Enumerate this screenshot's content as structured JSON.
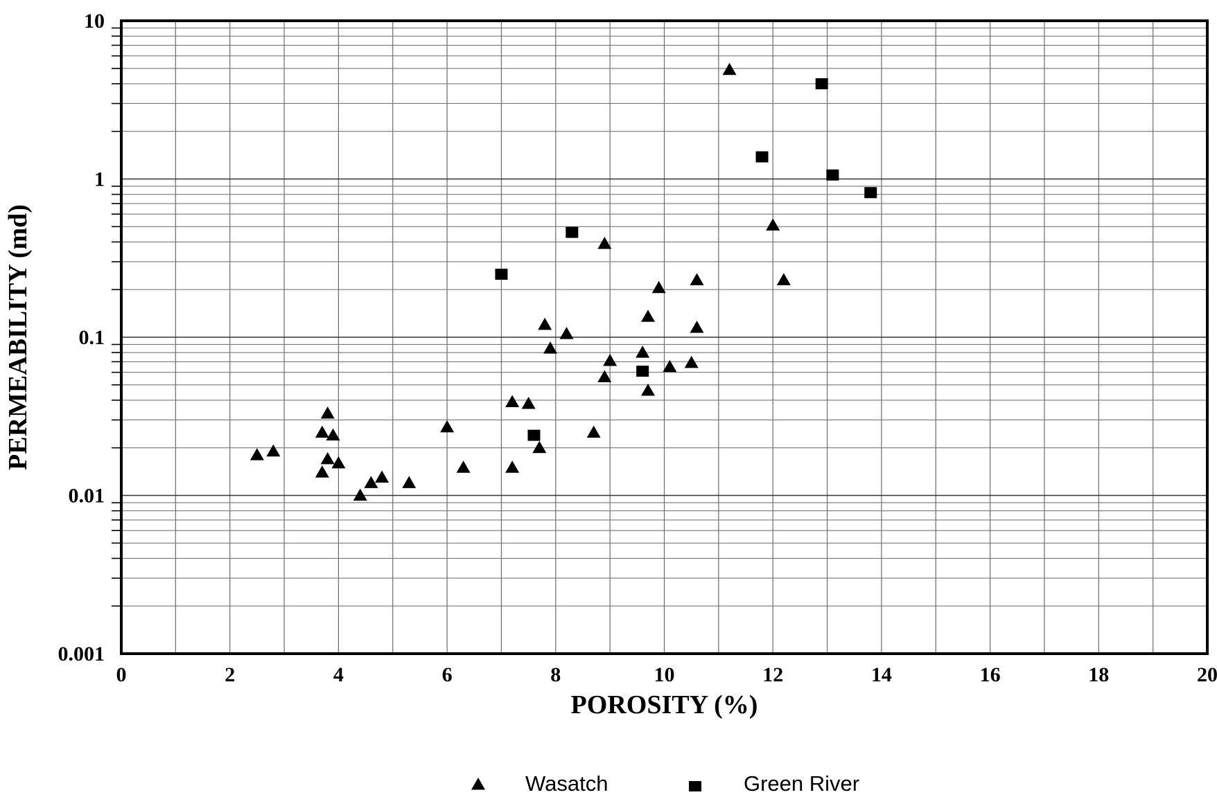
{
  "chart_data": {
    "type": "scatter",
    "title": "",
    "xlabel": "POROSITY (%)",
    "ylabel": "PERMEABILITY (md)",
    "xlim": [
      0,
      20
    ],
    "ylim": [
      0.001,
      10
    ],
    "yscale": "log",
    "grid": true,
    "legend_position": "bottom-center",
    "x_ticks": [
      "0",
      "2",
      "4",
      "6",
      "8",
      "10",
      "12",
      "14",
      "16",
      "18",
      "20"
    ],
    "y_ticks": [
      "0.001",
      "0.01",
      "0.1",
      "1",
      "10"
    ],
    "series": [
      {
        "name": "Wasatch",
        "marker": "triangle",
        "color": "#000000",
        "points": [
          [
            2.5,
            0.018
          ],
          [
            2.8,
            0.019
          ],
          [
            3.7,
            0.025
          ],
          [
            3.8,
            0.033
          ],
          [
            3.9,
            0.024
          ],
          [
            3.7,
            0.014
          ],
          [
            3.8,
            0.017
          ],
          [
            4.0,
            0.016
          ],
          [
            4.4,
            0.01
          ],
          [
            4.6,
            0.012
          ],
          [
            4.8,
            0.013
          ],
          [
            5.3,
            0.012
          ],
          [
            6.0,
            0.027
          ],
          [
            6.3,
            0.015
          ],
          [
            7.2,
            0.039
          ],
          [
            7.2,
            0.015
          ],
          [
            7.5,
            0.038
          ],
          [
            7.7,
            0.02
          ],
          [
            7.8,
            0.12
          ],
          [
            7.9,
            0.085
          ],
          [
            8.2,
            0.105
          ],
          [
            8.7,
            0.025
          ],
          [
            8.9,
            0.39
          ],
          [
            8.9,
            0.056
          ],
          [
            9.0,
            0.071
          ],
          [
            9.6,
            0.08
          ],
          [
            9.7,
            0.135
          ],
          [
            9.7,
            0.046
          ],
          [
            9.9,
            0.205
          ],
          [
            10.1,
            0.065
          ],
          [
            10.5,
            0.069
          ],
          [
            10.6,
            0.23
          ],
          [
            10.6,
            0.115
          ],
          [
            11.2,
            4.9
          ],
          [
            12.0,
            0.51
          ],
          [
            12.2,
            0.23
          ]
        ]
      },
      {
        "name": "Green River",
        "marker": "square",
        "color": "#000000",
        "points": [
          [
            7.0,
            0.25
          ],
          [
            7.6,
            0.024
          ],
          [
            8.3,
            0.46
          ],
          [
            9.6,
            0.061
          ],
          [
            11.8,
            1.38
          ],
          [
            12.9,
            4.0
          ],
          [
            13.1,
            1.06
          ],
          [
            13.8,
            0.82
          ]
        ]
      }
    ]
  }
}
